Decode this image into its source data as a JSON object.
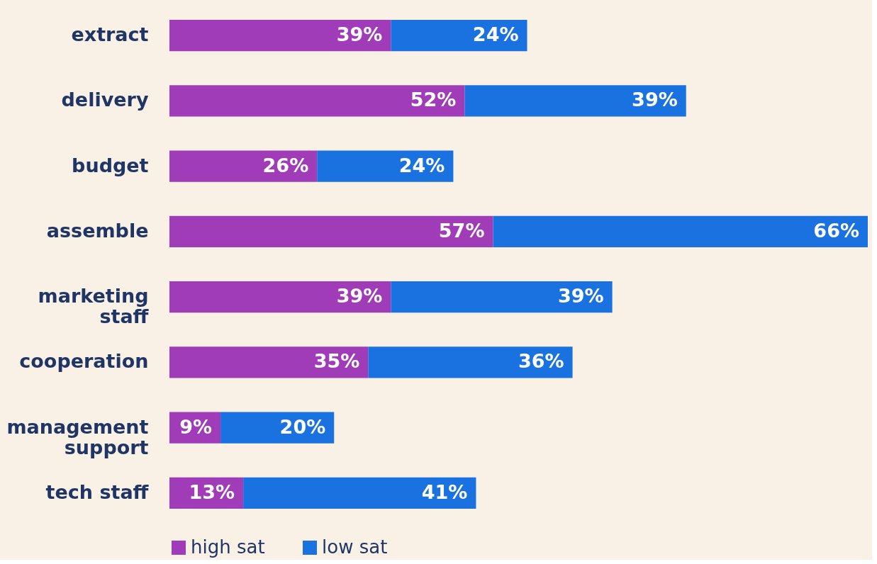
{
  "chart_data": {
    "type": "bar",
    "orientation": "horizontal",
    "stacked": true,
    "legend": "bottom",
    "categories": [
      "extract",
      "delivery",
      "budget",
      "assemble",
      "marketing staff",
      "cooperation",
      "management support",
      "tech staff"
    ],
    "series": [
      {
        "name": "high sat",
        "color": "#a03cb8",
        "values": [
          39,
          52,
          26,
          57,
          39,
          35,
          9,
          13
        ],
        "value_labels": [
          "39%",
          "52%",
          "26%",
          "57%",
          "39%",
          "35%",
          "9%",
          "13%"
        ]
      },
      {
        "name": "low sat",
        "color": "#1a72e0",
        "values": [
          24,
          39,
          24,
          66,
          39,
          36,
          20,
          41
        ],
        "value_labels": [
          "24%",
          "39%",
          "24%",
          "66%",
          "39%",
          "36%",
          "20%",
          "41%"
        ]
      }
    ]
  }
}
